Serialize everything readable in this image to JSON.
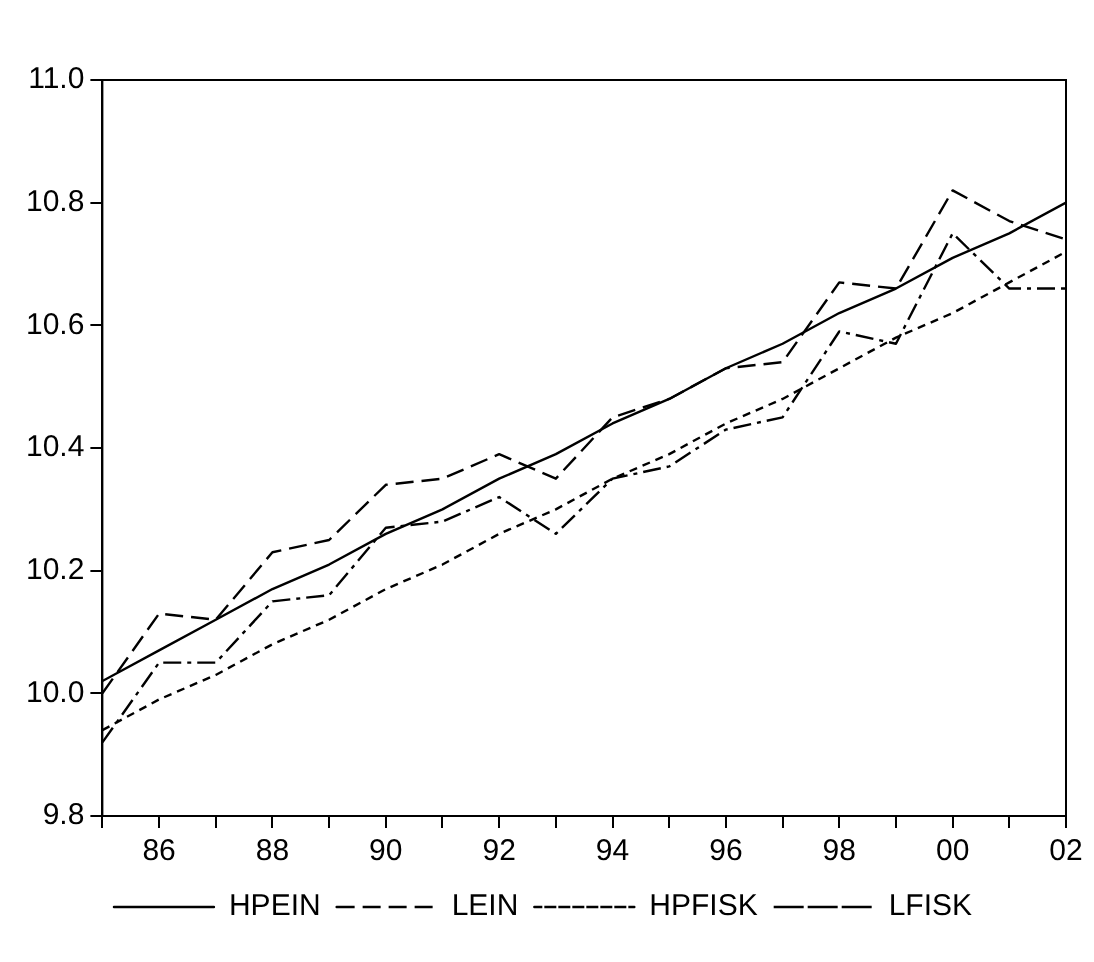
{
  "chart_data": {
    "type": "line",
    "x": [
      1985,
      1986,
      1987,
      1988,
      1989,
      1990,
      1991,
      1992,
      1993,
      1994,
      1995,
      1996,
      1997,
      1998,
      1999,
      2000,
      2001,
      2002
    ],
    "series": [
      {
        "name": "HPEIN",
        "color": "#000000",
        "line_style": "solid",
        "values": [
          10.02,
          10.07,
          10.12,
          10.17,
          10.21,
          10.26,
          10.3,
          10.35,
          10.39,
          10.44,
          10.48,
          10.53,
          10.57,
          10.62,
          10.66,
          10.71,
          10.75,
          10.8
        ]
      },
      {
        "name": "LEIN",
        "color": "#000000",
        "line_style": "dashed",
        "values": [
          10.0,
          10.13,
          10.12,
          10.23,
          10.25,
          10.34,
          10.35,
          10.39,
          10.35,
          10.45,
          10.48,
          10.53,
          10.54,
          10.67,
          10.66,
          10.82,
          10.77,
          10.74
        ]
      },
      {
        "name": "HPFISK",
        "color": "#000000",
        "line_style": "dotted",
        "values": [
          9.94,
          9.99,
          10.03,
          10.08,
          10.12,
          10.17,
          10.21,
          10.26,
          10.3,
          10.35,
          10.39,
          10.44,
          10.48,
          10.53,
          10.58,
          10.62,
          10.67,
          10.72
        ]
      },
      {
        "name": "LFISK",
        "color": "#000000",
        "line_style": "dashdot",
        "values": [
          9.92,
          10.05,
          10.05,
          10.15,
          10.16,
          10.27,
          10.28,
          10.32,
          10.26,
          10.35,
          10.37,
          10.43,
          10.45,
          10.59,
          10.57,
          10.75,
          10.66,
          10.66
        ]
      }
    ],
    "xlim": [
      1985,
      2002
    ],
    "xticks": [
      {
        "value": 1985,
        "label": null
      },
      {
        "value": 1986,
        "label": "86"
      },
      {
        "value": 1987,
        "label": null
      },
      {
        "value": 1988,
        "label": "88"
      },
      {
        "value": 1989,
        "label": null
      },
      {
        "value": 1990,
        "label": "90"
      },
      {
        "value": 1991,
        "label": null
      },
      {
        "value": 1992,
        "label": "92"
      },
      {
        "value": 1993,
        "label": null
      },
      {
        "value": 1994,
        "label": "94"
      },
      {
        "value": 1995,
        "label": null
      },
      {
        "value": 1996,
        "label": "96"
      },
      {
        "value": 1997,
        "label": null
      },
      {
        "value": 1998,
        "label": "98"
      },
      {
        "value": 1999,
        "label": null
      },
      {
        "value": 2000,
        "label": "00"
      },
      {
        "value": 2001,
        "label": null
      },
      {
        "value": 2002,
        "label": "02"
      }
    ],
    "ylim": [
      9.8,
      11.0
    ],
    "yticks": [
      {
        "value": 9.8,
        "label": "9.8"
      },
      {
        "value": 10.0,
        "label": "10.0"
      },
      {
        "value": 10.2,
        "label": "10.2"
      },
      {
        "value": 10.4,
        "label": "10.4"
      },
      {
        "value": 10.6,
        "label": "10.6"
      },
      {
        "value": 10.8,
        "label": "10.8"
      },
      {
        "value": 11.0,
        "label": "11.0"
      }
    ],
    "grid": false,
    "legend": "bottom",
    "marker": "none"
  }
}
